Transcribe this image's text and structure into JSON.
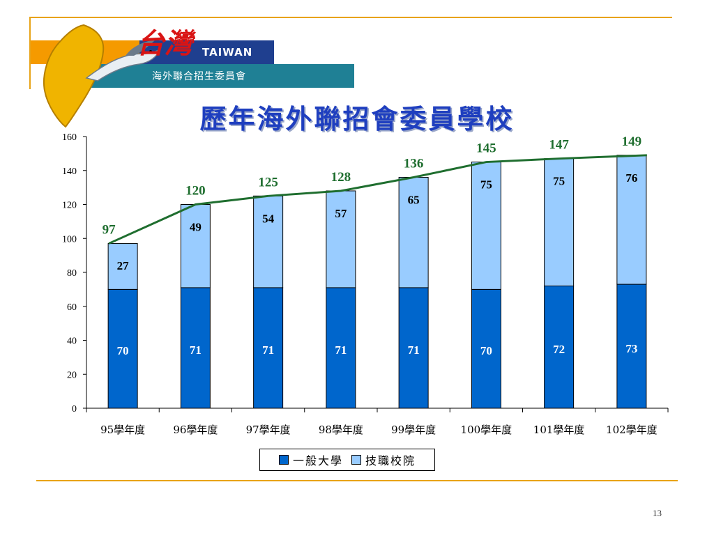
{
  "logo": {
    "en": "TAIWAN",
    "zh": "海外聯合招生委員會",
    "script": "台灣"
  },
  "title": "歷年海外聯招會委員學校",
  "page_number": "13",
  "colors": {
    "general": "#0066cc",
    "vocational": "#99ccff",
    "total_line": "#1f6e2f",
    "accent": "#e8a317"
  },
  "chart_data": {
    "type": "bar",
    "stacked": true,
    "categories": [
      "95學年度",
      "96學年度",
      "97學年度",
      "98學年度",
      "99學年度",
      "100學年度",
      "101學年度",
      "102學年度"
    ],
    "series": [
      {
        "name": "一般大學",
        "values": [
          70,
          71,
          71,
          71,
          71,
          70,
          72,
          73
        ]
      },
      {
        "name": "技職校院",
        "values": [
          27,
          49,
          54,
          57,
          65,
          75,
          75,
          76
        ]
      }
    ],
    "totals": [
      97,
      120,
      125,
      128,
      136,
      145,
      147,
      149
    ],
    "ylim": [
      0,
      160
    ],
    "yticks": [
      0,
      20,
      40,
      60,
      80,
      100,
      120,
      140,
      160
    ],
    "legend_position": "bottom",
    "grid": false
  }
}
